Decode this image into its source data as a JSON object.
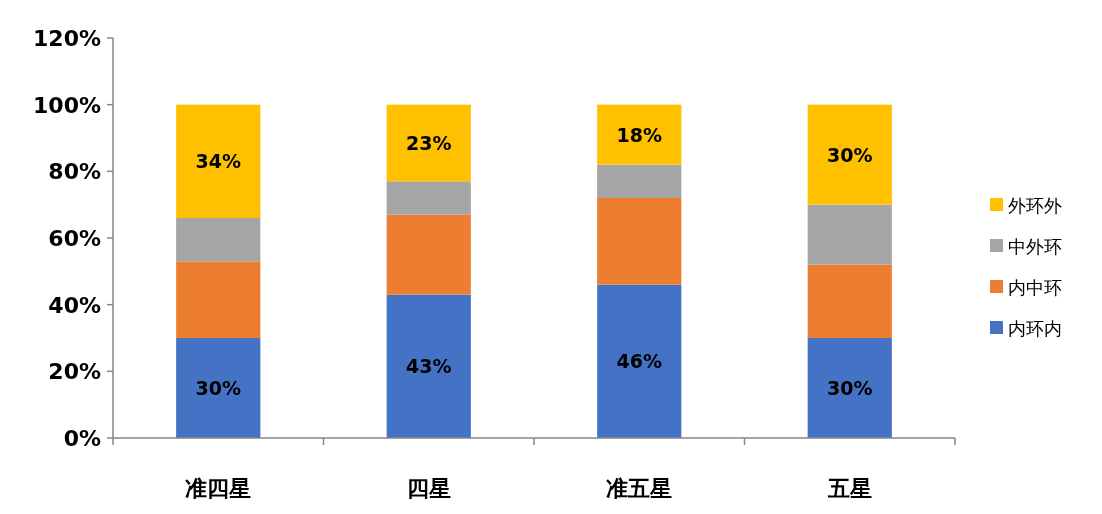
{
  "chart_data": {
    "type": "bar",
    "stacked": true,
    "categories": [
      "准四星",
      "四星",
      "准五星",
      "五星"
    ],
    "series": [
      {
        "name": "内环内",
        "color": "#4472c4",
        "values": [
          30,
          43,
          46,
          30
        ],
        "value_labels": [
          "30%",
          "43%",
          "46%",
          "30%"
        ]
      },
      {
        "name": "内中环",
        "color": "#ed7d31",
        "values": [
          23,
          24,
          26,
          22
        ]
      },
      {
        "name": "中外环",
        "color": "#a5a5a5",
        "values": [
          13,
          10,
          10,
          18
        ]
      },
      {
        "name": "外环外",
        "color": "#ffc000",
        "values": [
          34,
          23,
          18,
          30
        ],
        "value_labels": [
          "34%",
          "23%",
          "18%",
          "30%"
        ]
      }
    ],
    "ylim": [
      0,
      120
    ],
    "yticks": [
      {
        "value": 0,
        "label": "0%"
      },
      {
        "value": 20,
        "label": "20%"
      },
      {
        "value": 40,
        "label": "40%"
      },
      {
        "value": 60,
        "label": "60%"
      },
      {
        "value": 80,
        "label": "80%"
      },
      {
        "value": 100,
        "label": "100%"
      },
      {
        "value": 120,
        "label": "120%"
      }
    ],
    "grid": false,
    "legend": "right"
  }
}
